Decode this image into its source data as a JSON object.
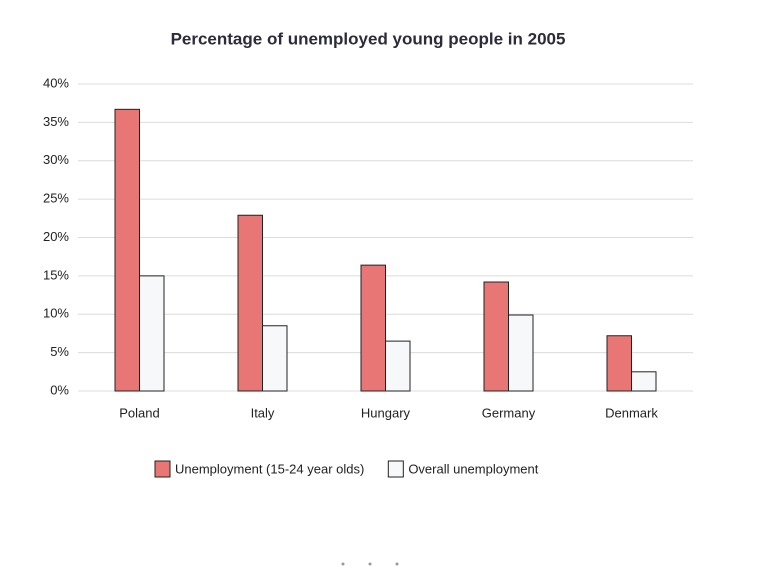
{
  "chart_data": {
    "type": "bar",
    "title": "Percentage of unemployed young people in 2005",
    "categories": [
      "Poland",
      "Italy",
      "Hungary",
      "Germany",
      "Denmark"
    ],
    "series": [
      {
        "name": "Unemployment (15-24 year olds)",
        "color": "#e87674",
        "values": [
          36.7,
          22.9,
          16.4,
          14.2,
          7.2
        ]
      },
      {
        "name": "Overall unemployment",
        "color": "#f7f8fa",
        "values": [
          15,
          8.5,
          6.5,
          9.9,
          2.5
        ]
      }
    ],
    "ylim": [
      0,
      40
    ],
    "yticks": [
      {
        "value": 0,
        "label": "0%"
      },
      {
        "value": 5,
        "label": "5%"
      },
      {
        "value": 10,
        "label": "10%"
      },
      {
        "value": 15,
        "label": "15%"
      },
      {
        "value": 20,
        "label": "20%"
      },
      {
        "value": 25,
        "label": "25%"
      },
      {
        "value": 30,
        "label": "30%"
      },
      {
        "value": 35,
        "label": "35%"
      },
      {
        "value": 40,
        "label": "40%"
      }
    ],
    "grid": true
  }
}
